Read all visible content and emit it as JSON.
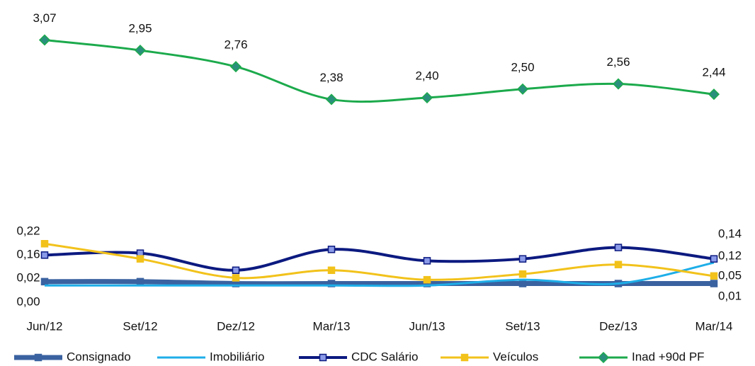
{
  "chart_data": {
    "type": "line",
    "categories": [
      "Jun/12",
      "Set/12",
      "Dez/12",
      "Mar/13",
      "Jun/13",
      "Set/13",
      "Dez/13",
      "Mar/14"
    ],
    "ylim": [
      -0.1,
      1.43
    ],
    "y2lim": [
      0,
      3.37
    ],
    "legend": "bottom",
    "series": [
      {
        "name": "Consignado",
        "color": "#3a62a0",
        "marker": "square",
        "values": [
          0.02,
          0.02,
          0.01,
          0.01,
          0.01,
          0.01,
          0.01,
          0.01
        ],
        "value_labels": [
          "0,02",
          null,
          null,
          null,
          null,
          null,
          null,
          "0,01"
        ]
      },
      {
        "name": "Imobiliário",
        "color": "#1eaee8",
        "marker": "none",
        "values": [
          0.0,
          0.0,
          0.0,
          0.0,
          0.0,
          0.03,
          0.01,
          0.12
        ],
        "value_labels": [
          "0,00",
          null,
          null,
          null,
          null,
          null,
          null,
          "0,12"
        ]
      },
      {
        "name": "CDC Salário",
        "color": "#0c1a80",
        "marker": "square",
        "values": [
          0.16,
          0.17,
          0.08,
          0.19,
          0.13,
          0.14,
          0.2,
          0.14
        ],
        "value_labels": [
          "0,16",
          null,
          null,
          null,
          null,
          null,
          null,
          "0,14"
        ]
      },
      {
        "name": "Veículos",
        "color": "#f2c21b",
        "marker": "square",
        "values": [
          0.22,
          0.14,
          0.04,
          0.08,
          0.03,
          0.06,
          0.11,
          0.05
        ],
        "value_labels": [
          "0,22",
          null,
          null,
          null,
          null,
          null,
          null,
          "0,05"
        ]
      },
      {
        "name": "Inad +90d PF",
        "color": "#1caa4c",
        "marker": "diamond",
        "axis": "y2",
        "values": [
          3.07,
          2.95,
          2.76,
          2.38,
          2.4,
          2.5,
          2.56,
          2.44
        ],
        "value_labels": [
          "3,07",
          "2,95",
          "2,76",
          "2,38",
          "2,40",
          "2,50",
          "2,56",
          "2,44"
        ]
      }
    ]
  }
}
